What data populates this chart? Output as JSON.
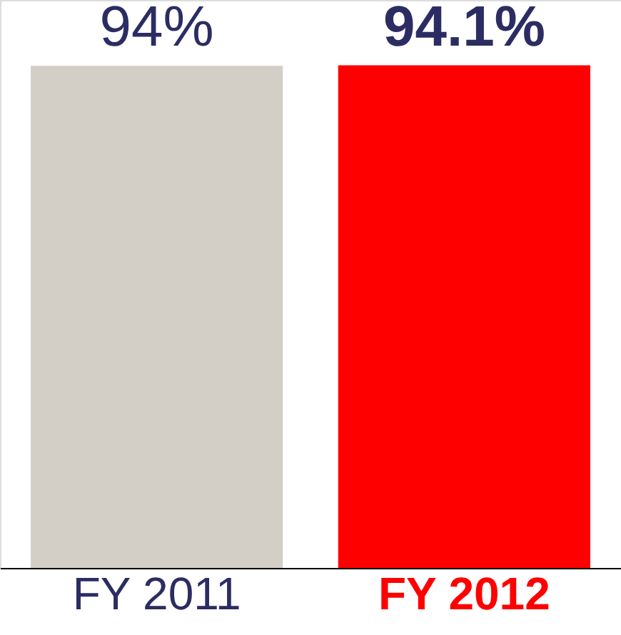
{
  "chart_data": {
    "type": "bar",
    "categories": [
      "FY 2011",
      "FY 2012"
    ],
    "values": [
      94,
      94.1
    ],
    "colors": [
      "#d3cec6",
      "#ff0000"
    ],
    "value_labels": [
      "94%",
      "94.1%"
    ]
  }
}
